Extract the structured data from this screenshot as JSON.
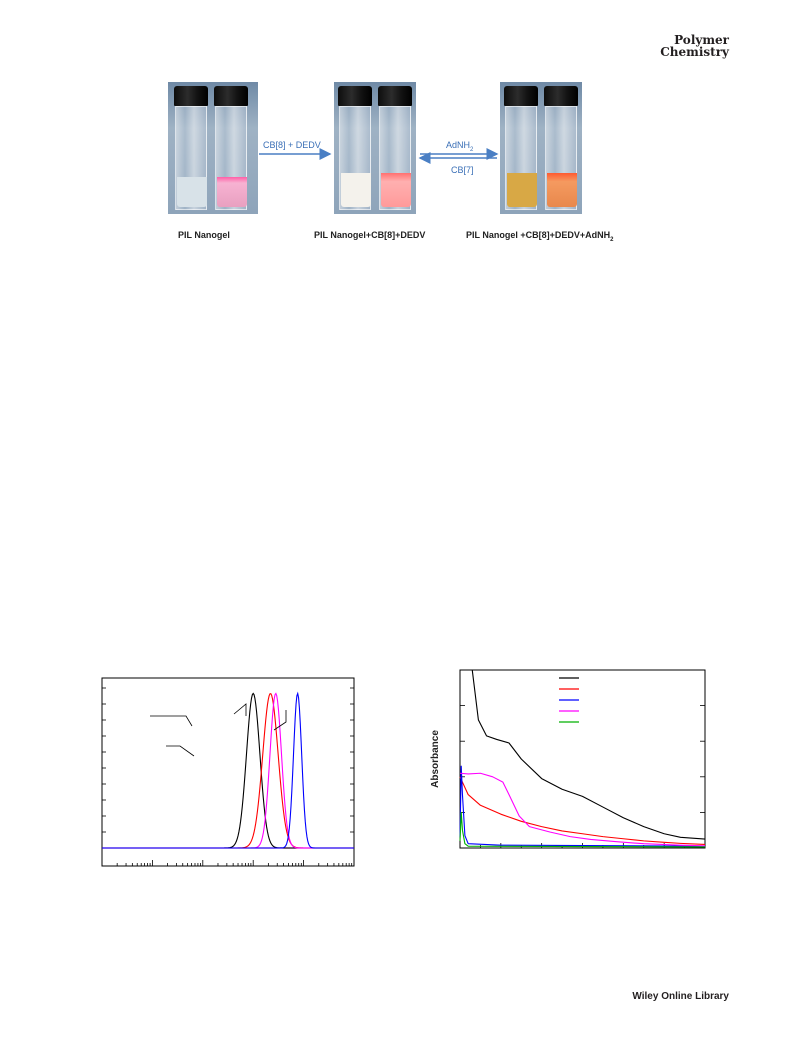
{
  "header": {
    "journal_line1": "Polymer",
    "journal_line2": "Chemistry"
  },
  "scheme": {
    "panels": [
      {
        "caption": "PIL Nanogel",
        "left_liquid": "#d8e2e8",
        "right_liquid": "#f08ab4"
      },
      {
        "caption": "PIL Nanogel+CB[8]+DEDV",
        "left_liquid": "#f2f0ea",
        "right_liquid": "#ff8f8f"
      },
      {
        "caption": "PIL Nanogel +CB[8]+DEDV+AdNH",
        "caption_sub": "2",
        "left_liquid": "#d8a845",
        "right_liquid": "#f07a4a"
      }
    ],
    "forward_arrow_label": "CB[8] + DEDV",
    "reverse_top_label": "AdNH",
    "reverse_top_sub": "2",
    "reverse_bottom_label": "CB[7]"
  },
  "chart_data": [
    {
      "type": "line",
      "x_scale": "log",
      "xlim": [
        0.1,
        10000
      ],
      "ylim": [
        0,
        1.1
      ],
      "grid": false,
      "series": [
        {
          "color": "#000000",
          "peak_x": 100,
          "width_decades": 0.28,
          "peak_y": 1.0
        },
        {
          "color": "#ff0000",
          "peak_x": 220,
          "width_decades": 0.32,
          "peak_y": 1.0
        },
        {
          "color": "#ff00ff",
          "peak_x": 280,
          "width_decades": 0.24,
          "peak_y": 1.0
        },
        {
          "color": "#0000ff",
          "peak_x": 760,
          "width_decades": 0.17,
          "peak_y": 1.0
        }
      ]
    },
    {
      "type": "line",
      "ylabel": "Absorbance",
      "xlim": [
        200,
        800
      ],
      "ylim": [
        0,
        5
      ],
      "grid": false,
      "legend": "top-center",
      "series": [
        {
          "color": "#000000",
          "points": [
            [
              230,
              5.0
            ],
            [
              245,
              3.6
            ],
            [
              265,
              3.15
            ],
            [
              290,
              3.05
            ],
            [
              320,
              2.95
            ],
            [
              350,
              2.5
            ],
            [
              400,
              1.95
            ],
            [
              450,
              1.65
            ],
            [
              500,
              1.45
            ],
            [
              550,
              1.15
            ],
            [
              600,
              0.85
            ],
            [
              650,
              0.6
            ],
            [
              700,
              0.4
            ],
            [
              740,
              0.3
            ],
            [
              800,
              0.25
            ]
          ]
        },
        {
          "color": "#ff0000",
          "points": [
            [
              200,
              2.0
            ],
            [
              220,
              1.5
            ],
            [
              250,
              1.2
            ],
            [
              300,
              0.95
            ],
            [
              350,
              0.75
            ],
            [
              400,
              0.6
            ],
            [
              450,
              0.48
            ],
            [
              500,
              0.4
            ],
            [
              550,
              0.32
            ],
            [
              600,
              0.26
            ],
            [
              650,
              0.2
            ],
            [
              700,
              0.16
            ],
            [
              740,
              0.13
            ],
            [
              800,
              0.1
            ]
          ]
        },
        {
          "color": "#0000ff",
          "points": [
            [
              200,
              0.3
            ],
            [
              203,
              2.3
            ],
            [
              206,
              1.5
            ],
            [
              212,
              0.35
            ],
            [
              220,
              0.12
            ],
            [
              300,
              0.08
            ],
            [
              800,
              0.05
            ]
          ]
        },
        {
          "color": "#ff00ff",
          "points": [
            [
              200,
              2.1
            ],
            [
              220,
              2.08
            ],
            [
              250,
              2.1
            ],
            [
              280,
              2.0
            ],
            [
              305,
              1.85
            ],
            [
              320,
              1.5
            ],
            [
              345,
              0.9
            ],
            [
              370,
              0.6
            ],
            [
              420,
              0.45
            ],
            [
              470,
              0.32
            ],
            [
              520,
              0.24
            ],
            [
              580,
              0.18
            ],
            [
              650,
              0.12
            ],
            [
              740,
              0.08
            ],
            [
              800,
              0.06
            ]
          ]
        },
        {
          "color": "#00b000",
          "points": [
            [
              200,
              0.2
            ],
            [
              203,
              1.0
            ],
            [
              206,
              0.5
            ],
            [
              212,
              0.12
            ],
            [
              220,
              0.05
            ],
            [
              800,
              0.03
            ]
          ]
        }
      ]
    }
  ],
  "footer": {
    "publisher": "Wiley Online Library"
  }
}
